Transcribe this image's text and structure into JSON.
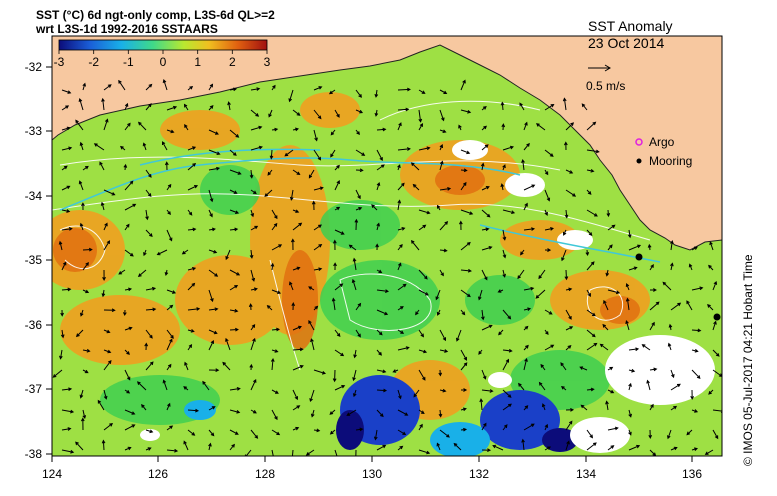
{
  "header": {
    "line1": "SST (°C) 6d ngt-only comp, L3S-6d QL>=2",
    "line2": "wrt L3S-1d 1992-2016 SSTAARS"
  },
  "colorbar": {
    "ticks": [
      "-3",
      "-2",
      "-1",
      "0",
      "1",
      "2",
      "3"
    ],
    "colors": [
      "#0c0c7a",
      "#1a5fd8",
      "#19b0e8",
      "#3fd98a",
      "#b8e830",
      "#f0c020",
      "#e06010",
      "#a01010"
    ]
  },
  "title": {
    "main": "SST Anomaly",
    "date": "23 Oct 2014"
  },
  "legend": {
    "speed_label": "0.5 m/s",
    "argo_label": "Argo",
    "mooring_label": "Mooring",
    "argo_color": "#e020e0",
    "mooring_color": "#000000"
  },
  "axes": {
    "x_ticks": [
      "124",
      "126",
      "128",
      "130",
      "132",
      "134",
      "136"
    ],
    "y_ticks": [
      "-32",
      "-33",
      "-34",
      "-35",
      "-36",
      "-37",
      "-38"
    ]
  },
  "credit": "© IMOS 05-Jul-2017 04:21 Hobart Time",
  "colors": {
    "land": "#f7c8a0",
    "no_data": "#ffffff",
    "contour": "#ffffff",
    "current": "#40c8d8"
  }
}
